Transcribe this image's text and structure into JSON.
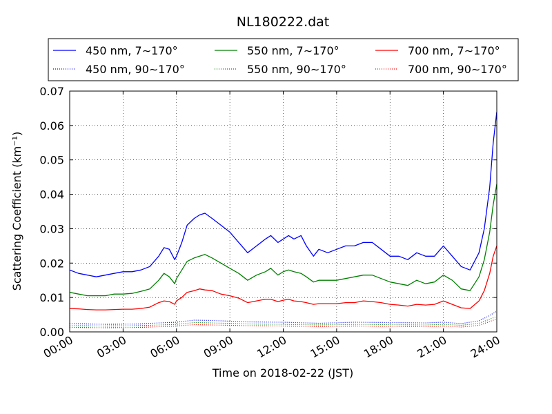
{
  "chart_data": {
    "type": "line",
    "title": "NL180222.dat",
    "xlabel": "Time on 2018-02-22 (JST)",
    "ylabel": "Scattering Coefficient (km⁻¹)",
    "xlim": [
      0,
      24
    ],
    "ylim": [
      0,
      0.07
    ],
    "x_ticks": [
      0,
      3,
      6,
      9,
      12,
      15,
      18,
      21,
      24
    ],
    "x_tick_labels": [
      "00:00",
      "03:00",
      "06:00",
      "09:00",
      "12:00",
      "15:00",
      "18:00",
      "21:00",
      "24:00"
    ],
    "y_ticks": [
      0,
      0.01,
      0.02,
      0.03,
      0.04,
      0.05,
      0.06,
      0.07
    ],
    "y_tick_labels": [
      "0.00",
      "0.01",
      "0.02",
      "0.03",
      "0.04",
      "0.05",
      "0.06",
      "0.07"
    ],
    "grid": true,
    "legend_position": "top",
    "series": [
      {
        "name": "450 nm, 7∼170°",
        "color": "#0000ff",
        "style": "solid",
        "x": [
          0,
          0.5,
          1,
          1.5,
          2,
          2.5,
          3,
          3.5,
          4,
          4.5,
          5,
          5.3,
          5.6,
          5.9,
          6,
          6.3,
          6.6,
          7,
          7.3,
          7.6,
          8,
          8.5,
          9,
          9.5,
          10,
          10.5,
          11,
          11.3,
          11.7,
          12,
          12.3,
          12.6,
          13,
          13.3,
          13.7,
          14,
          14.5,
          15,
          15.5,
          16,
          16.5,
          17,
          17.5,
          18,
          18.5,
          19,
          19.5,
          20,
          20.5,
          21,
          21.5,
          22,
          22.5,
          23,
          23.3,
          23.6,
          23.8,
          24
        ],
        "values": [
          0.018,
          0.017,
          0.0165,
          0.016,
          0.0165,
          0.017,
          0.0175,
          0.0175,
          0.018,
          0.019,
          0.022,
          0.0245,
          0.024,
          0.021,
          0.022,
          0.026,
          0.031,
          0.033,
          0.034,
          0.0345,
          0.033,
          0.031,
          0.029,
          0.026,
          0.023,
          0.025,
          0.027,
          0.028,
          0.026,
          0.027,
          0.028,
          0.027,
          0.028,
          0.025,
          0.022,
          0.024,
          0.023,
          0.024,
          0.025,
          0.025,
          0.026,
          0.026,
          0.024,
          0.022,
          0.022,
          0.021,
          0.023,
          0.022,
          0.022,
          0.025,
          0.022,
          0.019,
          0.018,
          0.023,
          0.03,
          0.042,
          0.055,
          0.064
        ]
      },
      {
        "name": "450 nm, 90∼170°",
        "color": "#0000ff",
        "style": "dotted",
        "x": [
          0,
          2,
          4,
          5,
          6,
          7,
          8,
          10,
          12,
          14,
          16,
          18,
          20,
          21,
          22,
          23,
          23.5,
          24
        ],
        "values": [
          0.0024,
          0.0022,
          0.0023,
          0.0026,
          0.0028,
          0.0034,
          0.0033,
          0.0029,
          0.0028,
          0.0025,
          0.0028,
          0.0027,
          0.0026,
          0.0028,
          0.0024,
          0.0032,
          0.0045,
          0.006
        ]
      },
      {
        "name": "550 nm, 7∼170°",
        "color": "#008000",
        "style": "solid",
        "x": [
          0,
          0.5,
          1,
          1.5,
          2,
          2.5,
          3,
          3.5,
          4,
          4.5,
          5,
          5.3,
          5.6,
          5.9,
          6,
          6.3,
          6.6,
          7,
          7.3,
          7.6,
          8,
          8.5,
          9,
          9.5,
          10,
          10.5,
          11,
          11.3,
          11.7,
          12,
          12.3,
          12.6,
          13,
          13.3,
          13.7,
          14,
          14.5,
          15,
          15.5,
          16,
          16.5,
          17,
          17.5,
          18,
          18.5,
          19,
          19.5,
          20,
          20.5,
          21,
          21.5,
          22,
          22.5,
          23,
          23.3,
          23.6,
          23.8,
          24
        ],
        "values": [
          0.0115,
          0.011,
          0.0105,
          0.0105,
          0.0105,
          0.011,
          0.011,
          0.0112,
          0.0118,
          0.0125,
          0.015,
          0.017,
          0.016,
          0.014,
          0.0155,
          0.018,
          0.0205,
          0.0215,
          0.022,
          0.0225,
          0.0215,
          0.02,
          0.0185,
          0.017,
          0.015,
          0.0165,
          0.0175,
          0.0185,
          0.0165,
          0.0175,
          0.018,
          0.0175,
          0.017,
          0.016,
          0.0145,
          0.015,
          0.015,
          0.015,
          0.0155,
          0.016,
          0.0165,
          0.0165,
          0.0155,
          0.0145,
          0.014,
          0.0135,
          0.015,
          0.014,
          0.0145,
          0.0165,
          0.015,
          0.0125,
          0.012,
          0.016,
          0.021,
          0.029,
          0.037,
          0.043
        ]
      },
      {
        "name": "550 nm, 90∼170°",
        "color": "#008000",
        "style": "dotted",
        "x": [
          0,
          2,
          4,
          5,
          6,
          7,
          8,
          10,
          12,
          14,
          16,
          18,
          20,
          21,
          22,
          23,
          23.5,
          24
        ],
        "values": [
          0.0018,
          0.0017,
          0.0018,
          0.002,
          0.0022,
          0.0027,
          0.0026,
          0.0023,
          0.0022,
          0.002,
          0.0022,
          0.0021,
          0.002,
          0.0022,
          0.0019,
          0.0025,
          0.0035,
          0.0045
        ]
      },
      {
        "name": "700 nm, 7∼170°",
        "color": "#ff0000",
        "style": "solid",
        "x": [
          0,
          0.5,
          1,
          1.5,
          2,
          2.5,
          3,
          3.5,
          4,
          4.5,
          5,
          5.3,
          5.6,
          5.9,
          6,
          6.3,
          6.6,
          7,
          7.3,
          7.6,
          8,
          8.5,
          9,
          9.5,
          10,
          10.5,
          11,
          11.3,
          11.7,
          12,
          12.3,
          12.6,
          13,
          13.3,
          13.7,
          14,
          14.5,
          15,
          15.5,
          16,
          16.5,
          17,
          17.5,
          18,
          18.5,
          19,
          19.5,
          20,
          20.5,
          21,
          21.5,
          22,
          22.5,
          23,
          23.3,
          23.6,
          23.8,
          24
        ],
        "values": [
          0.0068,
          0.0067,
          0.0065,
          0.0064,
          0.0064,
          0.0065,
          0.0066,
          0.0066,
          0.0068,
          0.0072,
          0.0085,
          0.009,
          0.0088,
          0.008,
          0.009,
          0.01,
          0.0115,
          0.012,
          0.0125,
          0.0122,
          0.012,
          0.011,
          0.0105,
          0.0098,
          0.0085,
          0.009,
          0.0095,
          0.0095,
          0.0088,
          0.0092,
          0.0095,
          0.009,
          0.0088,
          0.0085,
          0.008,
          0.0082,
          0.0082,
          0.0082,
          0.0085,
          0.0085,
          0.009,
          0.0088,
          0.0085,
          0.008,
          0.0078,
          0.0075,
          0.008,
          0.0078,
          0.008,
          0.009,
          0.008,
          0.007,
          0.0068,
          0.009,
          0.012,
          0.017,
          0.022,
          0.025
        ]
      },
      {
        "name": "700 nm, 90∼170°",
        "color": "#ff0000",
        "style": "dotted",
        "x": [
          0,
          2,
          4,
          5,
          6,
          7,
          8,
          10,
          12,
          14,
          16,
          18,
          20,
          21,
          22,
          23,
          23.5,
          24
        ],
        "values": [
          0.0013,
          0.0012,
          0.0013,
          0.0015,
          0.0017,
          0.0021,
          0.002,
          0.0018,
          0.0017,
          0.0015,
          0.0017,
          0.0016,
          0.0015,
          0.0017,
          0.0014,
          0.0019,
          0.0028,
          0.0038
        ]
      }
    ]
  }
}
